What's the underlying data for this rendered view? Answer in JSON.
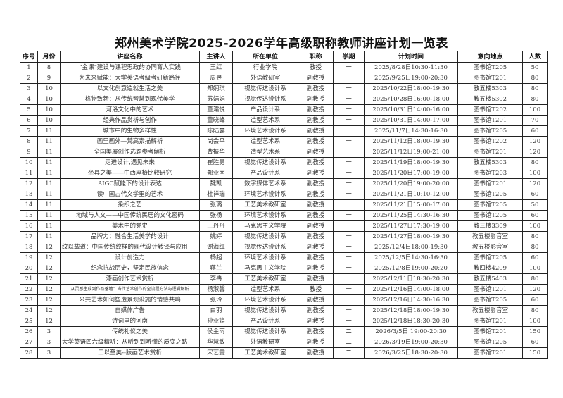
{
  "title": "郑州美术学院2025-2026学年高级职称教师讲座计划一览表",
  "columns": [
    "序号",
    "月份",
    "讲座名称",
    "主讲人",
    "所在单位",
    "职称",
    "学期",
    "计划时间",
    "意向地点",
    "人数"
  ],
  "rows": [
    [
      "1",
      "8",
      "“金课”建设与课程思政的协同育人实践",
      "王红",
      "行业学院",
      "教授",
      "一",
      "2025/8/28日10:30-11:30",
      "图书馆T205",
      "50"
    ],
    [
      "2",
      "9",
      "为未来赋能：大学英语考级考研新路径",
      "周昱",
      "外语教研室",
      "副教授",
      "一",
      "2025/9/25日19:00-20:30",
      "图书馆T201",
      "80"
    ],
    [
      "3",
      "10",
      "以文化创意造就生活之美",
      "郑娴琪",
      "视觉传达设计系",
      "副教授",
      "一",
      "2025/10/22日18:00-19:30",
      "教五楼5303",
      "80"
    ],
    [
      "4",
      "10",
      "格物致新：从传统智慧到现代美学",
      "苏娟娟",
      "视觉传达设计系",
      "副教授",
      "一",
      "2025/10/28日16:00-18:00",
      "教五楼5302",
      "80"
    ],
    [
      "5",
      "10",
      "河洛文化中的艺术",
      "董濡悦",
      "产品设计系",
      "副教授",
      "一",
      "2025/10/31日14:00-16:00",
      "图书馆T202",
      "100"
    ],
    [
      "6",
      "10",
      "经典作品赏析与创作",
      "董晓峰",
      "造型艺术系",
      "副教授",
      "一",
      "2025/10/31日14:00-17:00",
      "图书馆T201",
      "70"
    ],
    [
      "7",
      "11",
      "城市中的生物多样性",
      "陈陆露",
      "环境艺术设计系",
      "副教授",
      "一",
      "2025/11/7日14:30-16:30",
      "图书馆T205",
      "60"
    ],
    [
      "8",
      "11",
      "画里画外—梵高素描解析",
      "尚会平",
      "造型艺术系",
      "副教授",
      "一",
      "2025/11/12日18:00-19:30",
      "图书馆T202",
      "120"
    ],
    [
      "9",
      "11",
      "全国美展创作选题参考解析",
      "曹振华",
      "造型艺术系",
      "副教授",
      "一",
      "2025/11/12日19:00-21:00",
      "图书馆T201",
      "120"
    ],
    [
      "10",
      "11",
      "走进设计,遇见未来",
      "崔胜男",
      "视觉传达设计系",
      "副教授",
      "一",
      "2025/11/19日18:00-19:30",
      "教五楼5303",
      "80"
    ],
    [
      "11",
      "11",
      "坐具之美——中西座椅比较研究",
      "郑亚南",
      "产品设计系",
      "副教授",
      "一",
      "2025/11/20日17:00-19:00",
      "图书馆T203",
      "100"
    ],
    [
      "12",
      "11",
      "AIGC赋能下的设计表达",
      "魏凯",
      "数字媒体艺术系",
      "副教授",
      "一",
      "2025/11/20日19:00-20:00",
      "图书馆T201",
      "120"
    ],
    [
      "13",
      "11",
      "读中国古代文学里的艺术",
      "杜祥瑞",
      "环境艺术设计系",
      "副教授",
      "一",
      "2025/11/21日10:10-12:00",
      "图书馆T205",
      "60"
    ],
    [
      "14",
      "11",
      "染织之艺",
      "张璐",
      "工艺美术教研室",
      "副教授",
      "一",
      "2025/11/21日15:00-17:00",
      "图书馆T205",
      "50"
    ],
    [
      "15",
      "11",
      "地域与人文——中国传统民居的文化密码",
      "张杨",
      "环境艺术设计系",
      "副教授",
      "一",
      "2025/11/25日14:30-16:30",
      "图书馆T205",
      "60"
    ],
    [
      "16",
      "11",
      "美术中的党史",
      "王丹丹",
      "马克思主义学院",
      "副教授",
      "一",
      "2025/11/27日17:30-19:00",
      "教三楼3309",
      "100"
    ],
    [
      "17",
      "11",
      "品牌力：融合生活美学的设计",
      "姚婷",
      "视觉传达设计系",
      "副教授",
      "一",
      "2025/11/27日18:00-19:30",
      "教五楼影音室",
      "80"
    ],
    [
      "18",
      "12",
      "纹以载道：中国传统纹样的现代设计转译与应用",
      "谢海红",
      "视觉传达设计系",
      "副教授",
      "一",
      "2025/12/4日18:00-19:30",
      "教五楼影音室",
      "80"
    ],
    [
      "19",
      "12",
      "设计创造力",
      "杨超",
      "环境艺术设计系",
      "副教授",
      "一",
      "2025/12/5日14:30-16:30",
      "图书馆T205",
      "60"
    ],
    [
      "20",
      "12",
      "纪念抗战历史，坚定民族信念",
      "蒋兰",
      "马克思主义学院",
      "副教授",
      "一",
      "2025/12/8日19:00-20:20",
      "教四楼4209",
      "100"
    ],
    [
      "21",
      "12",
      "漆画创作艺术赏析",
      "李冉",
      "工艺美术教研室",
      "副教授",
      "一",
      "2025/12/11日18:30-20:30",
      "教五楼5403",
      "80"
    ],
    [
      "22",
      "12",
      "从灵感生成到作品落地：当代艺术创作的全流程方法与逻辑解析",
      "杨淑馨",
      "造型艺术系",
      "教授",
      "一",
      "2025/12/16日14:00-18:00",
      "图书馆T201",
      "120"
    ],
    [
      "23",
      "12",
      "公共艺术如何塑造景观设施的情感共鸣",
      "张玲",
      "环境艺术设计系",
      "副教授",
      "一",
      "2025/12/16日14:30-16:30",
      "图书馆T205",
      "60"
    ],
    [
      "24",
      "12",
      "自媒体广告",
      "白羽",
      "视觉传达设计系",
      "副教授",
      "一",
      "2025/12/18日18:00-19:30",
      "教五楼影音室",
      "80"
    ],
    [
      "25",
      "12",
      "诗词里的河南",
      "孙亚婷",
      "产品设计系",
      "副教授",
      "一",
      "2025/12/18日18:30-20:30",
      "图书馆T201",
      "100"
    ],
    [
      "26",
      "3",
      "传统礼仪之美",
      "侯金雨",
      "视觉传达设计系",
      "副教授",
      "二",
      "2026/3/5日 19:00-20:30",
      "图书馆T201",
      "150"
    ],
    [
      "27",
      "3",
      "大学英语四六级精听：从听到到听懂的质变之路",
      "华慧敏",
      "外语教研室",
      "副教授",
      "二",
      "2026/3/19日19:00-20:30",
      "图书馆T205",
      "60"
    ],
    [
      "28",
      "3",
      "工以至美--版画艺术赏析",
      "宋艺雯",
      "工艺美术教研室",
      "副教授",
      "二",
      "2026/3/25日18:30-20:30",
      "图书馆T201",
      "150"
    ]
  ]
}
